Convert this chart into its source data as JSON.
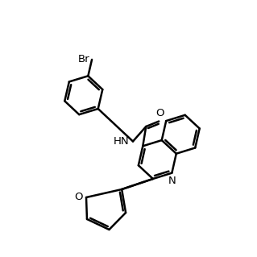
{
  "bg": "#ffffff",
  "lc": "#000000",
  "lw": 1.8,
  "lw_thin": 1.8,
  "fs": 9.5,
  "fs_label": 9.5,
  "xlim": [
    0,
    10
  ],
  "ylim": [
    0,
    10
  ]
}
